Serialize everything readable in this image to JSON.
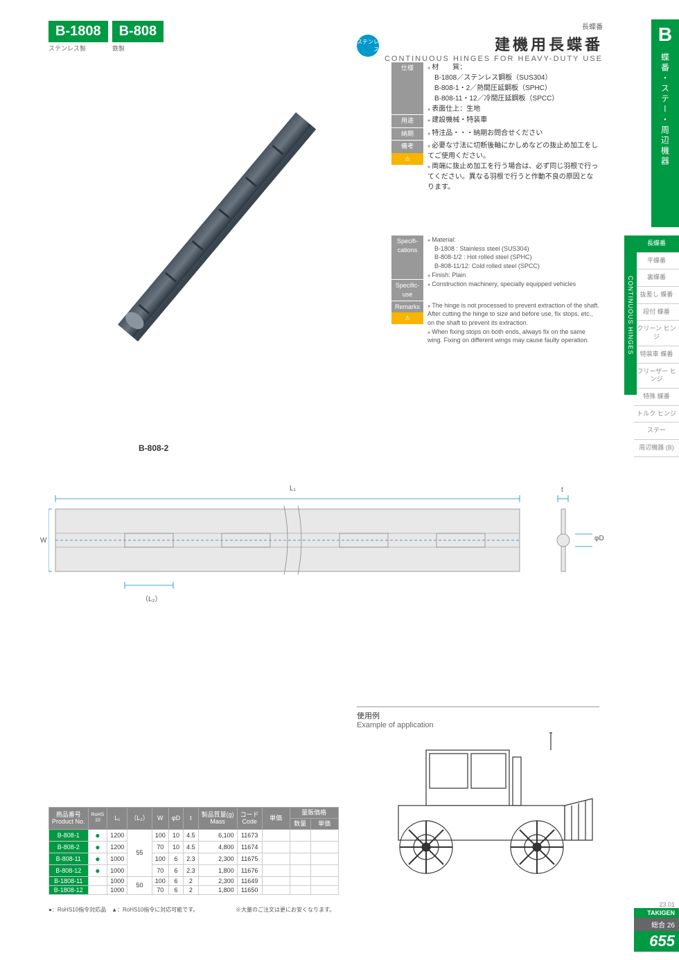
{
  "header": {
    "code1": "B-1808",
    "code1_sub": "ステンレス製",
    "code2": "B-808",
    "code2_sub": "鉄製",
    "category_label": "長蝶番",
    "title_jp": "建機用長蝶番",
    "title_en": "CONTINUOUS HINGES FOR HEAVY-DUTY USE",
    "stainless_badge": "ステンレス"
  },
  "sidebar": {
    "letter": "B",
    "vertical_text": "蝶番・ステー・周辺機器",
    "nav_header": "CONTINUOUS HINGES",
    "items": [
      "長蝶番",
      "平蝶番",
      "裏蝶番",
      "抜差し\n蝶番",
      "段付\n蝶番",
      "クリーン\nヒンジ",
      "特装車\n蝶番",
      "フリーザー\nヒンジ",
      "特殊\n蝶番",
      "トルク\nヒンジ",
      "ステー",
      "周辺機器\n(B)"
    ]
  },
  "spec_jp": {
    "labels": {
      "spec": "仕様",
      "use": "用途",
      "delivery": "納期",
      "remarks": "備考"
    },
    "material_label": "材　　質：",
    "material1": "B-1808／ステンレス鋼板（SUS304）",
    "material2": "B-808-1・2／熱間圧延鋼板（SPHC）",
    "material3": "B-808-11・12／冷間圧延鋼板（SPCC）",
    "finish": "表面仕上：生地",
    "use": "建設機械・特装車",
    "delivery": "特注品・・・納期お問合せください",
    "remarks1": "必要な寸法に切断後軸にかしめなどの抜止め加工をしてご使用ください。",
    "remarks2": "両端に抜止め加工を行う場合は、必ず同じ羽根で行ってください。異なる羽根で行うと作動不良の原因となります。"
  },
  "spec_en": {
    "labels": {
      "spec": "Specifi-\ncations",
      "use": "Specific-\nuse",
      "remarks": "Remarks"
    },
    "material_label": "Material:",
    "material1": "B-1808 : Stainless steel (SUS304)",
    "material2": "B-808-1/2 : Hot rolled steel (SPHC)",
    "material3": "B-808-11/12: Cold rolled steel (SPCC)",
    "finish": "Finish: Plain",
    "use": "Construction machinery, specially equipped vehicles",
    "remarks1": "The hinge is not processed to prevent extraction of the shaft. After cutting the hinge to size and before use, fix stops, etc., on the shaft to prevent its extraction.",
    "remarks2": "When fixing stops on both ends, always fix on the same wing. Fixing on different wings may cause faulty operation."
  },
  "product_label": "B-808-2",
  "diagram": {
    "L1": "L₁",
    "L2": "（L₂）",
    "W": "W",
    "t": "t",
    "phiD": "φD"
  },
  "application": {
    "title_jp": "使用例",
    "title_en": "Example of application"
  },
  "table": {
    "headers": {
      "product_jp": "商品番号",
      "product_en": "Product No.",
      "rohs": "RoHS\n10",
      "L1": "L₁",
      "L2": "（L₂）",
      "W": "W",
      "phiD": "φD",
      "t": "t",
      "mass_jp": "製品質量(g)",
      "mass_en": "Mass",
      "code_jp": "コード",
      "code_en": "Code",
      "unit_price": "単価",
      "bulk": "量販価格",
      "qty": "数量",
      "bulk_price": "単価"
    },
    "rows": [
      {
        "p": "B-808-1",
        "r": "●",
        "l1": "1200",
        "l2": "55",
        "w": "100",
        "d": "10",
        "t": "4.5",
        "m": "6,100",
        "c": "11673"
      },
      {
        "p": "B-808-2",
        "r": "●",
        "l1": "1200",
        "l2": "55",
        "w": "70",
        "d": "10",
        "t": "4.5",
        "m": "4,800",
        "c": "11674"
      },
      {
        "p": "B-808-11",
        "r": "●",
        "l1": "1000",
        "l2": "55",
        "w": "100",
        "d": "6",
        "t": "2.3",
        "m": "2,300",
        "c": "11675"
      },
      {
        "p": "B-808-12",
        "r": "●",
        "l1": "1000",
        "l2": "55",
        "w": "70",
        "d": "6",
        "t": "2.3",
        "m": "1,800",
        "c": "11676"
      },
      {
        "p": "B-1808-11",
        "r": "",
        "l1": "1000",
        "l2": "50",
        "w": "100",
        "d": "6",
        "t": "2",
        "m": "2,300",
        "c": "11649"
      },
      {
        "p": "B-1808-12",
        "r": "",
        "l1": "1000",
        "l2": "50",
        "w": "70",
        "d": "6",
        "t": "2",
        "m": "1,800",
        "c": "11650"
      }
    ],
    "note1": "●：RoHS10指令対応品　▲：RoHS10指令に対応可能です。",
    "note2": "※大量のご注文は更にお安くなります。"
  },
  "footer": {
    "date": "23.01",
    "brand": "TAKIGEN",
    "total_label": "総合",
    "total_num": "26",
    "page": "655"
  }
}
